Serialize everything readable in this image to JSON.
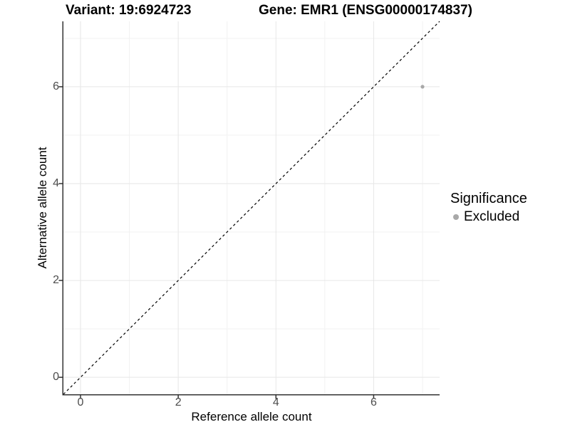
{
  "chart_data": {
    "type": "scatter",
    "title_left": "Variant: 19:6924723",
    "title_right": "Gene: EMR1 (ENSG00000174837)",
    "xlabel": "Reference allele count",
    "ylabel": "Alternative allele count",
    "xlim": [
      -0.35,
      7.35
    ],
    "ylim": [
      -0.35,
      7.35
    ],
    "x_major_ticks": [
      0,
      2,
      4,
      6
    ],
    "y_major_ticks": [
      0,
      2,
      4,
      6
    ],
    "x_minor_ticks": [
      1,
      3,
      5,
      7
    ],
    "y_minor_ticks": [
      1,
      3,
      5,
      7
    ],
    "grid": "major+minor on white panel",
    "reference_line": {
      "kind": "identity y=x",
      "style": "dashed",
      "color": "#000000"
    },
    "series": [
      {
        "name": "Excluded",
        "color": "#a8a8a8",
        "points": [
          {
            "x": 7,
            "y": 6
          }
        ]
      }
    ],
    "legend": {
      "title": "Significance",
      "position": "right",
      "items": [
        {
          "label": "Excluded",
          "color": "#a8a8a8"
        }
      ]
    },
    "style": {
      "grid_major_color": "#e6e6e6",
      "grid_minor_color": "#f2f2f2",
      "axis_line_color": "#333333",
      "tick_label_color": "#4d4d4d",
      "background": "#ffffff"
    }
  }
}
